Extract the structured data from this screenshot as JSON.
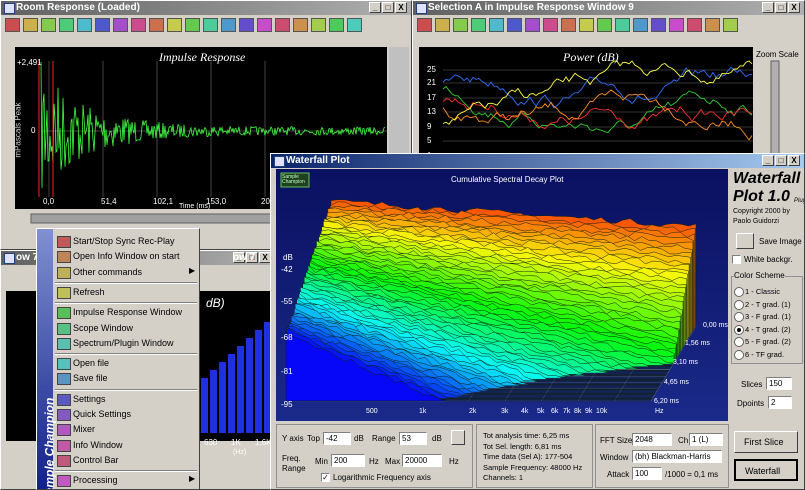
{
  "room_window": {
    "title": "Room Response (Loaded)",
    "plot_title": "Impulse Response",
    "y_label": "mPascals Peak",
    "y_ticks": [
      "+2,491",
      "0"
    ],
    "x_ticks": [
      "0,0",
      "51,4",
      "102,1",
      "153,0",
      "20"
    ],
    "x_label": "Time (ms)"
  },
  "selection_window": {
    "title": "Selection A in Impulse Response Window 9",
    "plot_title": "Power (dB)",
    "y_ticks": [
      "25",
      "21",
      "17",
      "13",
      "9",
      "5",
      "1"
    ],
    "zoom_label": "Zoom Scale"
  },
  "back_window": {
    "title": "ow 7",
    "plot_title": "dB)",
    "x_ticks": [
      "630",
      "1K",
      "1,6K"
    ],
    "x_label": "(Hz)"
  },
  "context_menu": {
    "brand": "Sample Champion",
    "groups": [
      [
        "Start/Stop Sync Rec-Play",
        "Open Info Window on start",
        "Other commands"
      ],
      [
        "Refresh"
      ],
      [
        "Impulse Response Window",
        "Scope Window",
        "Spectrum/Plugin Window"
      ],
      [
        "Open file",
        "Save file"
      ],
      [
        "Settings",
        "Quick Settings",
        "Mixer",
        "Info Window",
        "Control Bar"
      ],
      [
        "Processing"
      ]
    ]
  },
  "waterfall": {
    "title": "Waterfall Plot",
    "logo": "Sample Champion",
    "plot_title": "Cumulative Spectral Decay Plot",
    "y_unit": "dB",
    "y_ticks": [
      "-42",
      "-55",
      "-68",
      "-81",
      "-95"
    ],
    "x_ticks": [
      "500",
      "1k",
      "2k",
      "3k",
      "4k",
      "5k",
      "6k",
      "7k",
      "8k",
      "9k",
      "10k"
    ],
    "x_unit": "Hz",
    "time_ticks": [
      "0,00 ms",
      "1,56 ms",
      "3,10 ms",
      "4,65 ms",
      "6,20 ms"
    ],
    "brand": {
      "name": "Waterfall",
      "version": "Plot 1.0",
      "suffix": "Plugin",
      "copyright": "Copyright 2000 by",
      "author": "Paolo Guidorzi"
    },
    "save_image": "Save Image",
    "white_bg": "White backgr.",
    "white_bg_checked": false,
    "color_scheme": {
      "label": "Color Scheme",
      "options": [
        "1 - Classic",
        "2 - T grad. (1)",
        "3 - F grad. (1)",
        "4 - T grad. (2)",
        "5 - F grad. (2)",
        "6 - TF grad."
      ],
      "selected": 3
    },
    "slices": {
      "label": "Slices",
      "value": "150"
    },
    "dpoints": {
      "label": "Dpoints",
      "value": "2"
    },
    "y_axis": {
      "label": "Y axis",
      "top_label": "Top",
      "top": "-42",
      "unit": "dB",
      "range_label": "Range",
      "range": "53"
    },
    "freq": {
      "label1": "Freq.",
      "label2": "Range",
      "min_label": "Min",
      "min": "200",
      "unit": "Hz",
      "max_label": "Max",
      "max": "20000"
    },
    "log_axis": {
      "label": "Logarithmic Frequency axis",
      "checked": true
    },
    "info": [
      "Tot analysis time: 6,25 ms",
      "Tot Sel. length: 6,81 ms",
      "Time data (Sel A): 177-504",
      "Sample Frequency: 48000 Hz",
      "Channels: 1"
    ],
    "fft": {
      "label": "FFT Size",
      "value": "2048",
      "ch_label": "Ch",
      "ch": "1 (L)"
    },
    "window": {
      "label": "Window",
      "value": "(bh) Blackman-Harris"
    },
    "attack": {
      "label": "Attack",
      "value": "100",
      "suffix": "/1000 = 0,1 ms"
    },
    "buttons": [
      "First Slice",
      "Waterfall"
    ]
  }
}
